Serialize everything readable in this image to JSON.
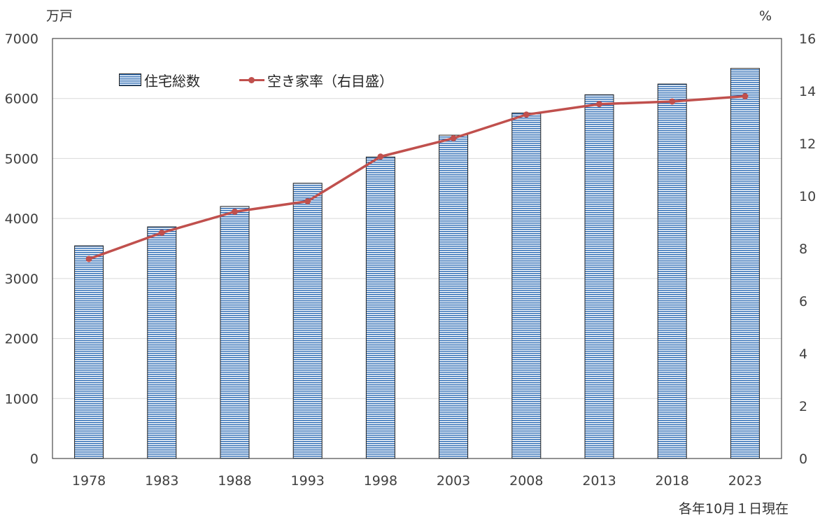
{
  "chart_data": {
    "type": "bar",
    "categories": [
      "1978",
      "1983",
      "1988",
      "1993",
      "1998",
      "2003",
      "2008",
      "2013",
      "2018",
      "2023"
    ],
    "series": [
      {
        "name": "住宅総数",
        "type": "bar",
        "axis": "left",
        "values": [
          3545,
          3861,
          4201,
          4588,
          5025,
          5389,
          5759,
          6063,
          6241,
          6502
        ]
      },
      {
        "name": "空き家率（右目盛）",
        "type": "line",
        "axis": "right",
        "values": [
          7.6,
          8.6,
          9.4,
          9.8,
          11.5,
          12.2,
          13.1,
          13.5,
          13.6,
          13.8
        ]
      }
    ],
    "left_axis": {
      "unit": "万戸",
      "ylim": [
        0,
        7000
      ],
      "ticks": [
        "0",
        "1000",
        "2000",
        "3000",
        "4000",
        "5000",
        "6000",
        "7000"
      ]
    },
    "right_axis": {
      "unit": "%",
      "ylim": [
        0,
        16
      ],
      "ticks": [
        "0",
        "2",
        "4",
        "6",
        "8",
        "10",
        "12",
        "14",
        "16"
      ]
    },
    "note": "各年10月１日現在",
    "grid": true,
    "legend_position": "top-left",
    "colors": {
      "bar_stripe": "#2f6db5",
      "bar_border": "#1f1f1f",
      "line": "#c0504d",
      "grid": "#d9d9d9"
    }
  }
}
